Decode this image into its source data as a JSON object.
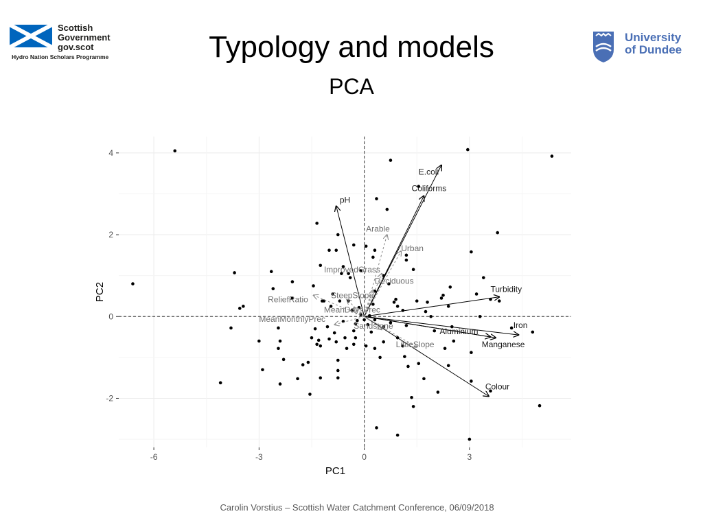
{
  "header": {
    "title": "Typology and models",
    "subtitle": "PCA",
    "logo_left": {
      "lines": [
        "Scottish",
        "Government",
        "gov.scot"
      ],
      "tagline": "Hydro Nation Scholars Programme"
    },
    "logo_right": {
      "lines": [
        "University",
        "of Dundee"
      ]
    }
  },
  "footer": {
    "text": "Carolin Vorstius – Scottish Water Catchment Conference, 06/09/2018"
  },
  "colors": {
    "gov_blue": "#0065bd",
    "dundee_blue": "#4a6fb5",
    "arrow_solid": "#000000",
    "arrow_dashed": "#8c8c8c"
  },
  "chart_data": {
    "type": "scatter",
    "subtype": "biplot",
    "xlabel": "PC1",
    "ylabel": "PC2",
    "xlim": [
      -7.0,
      5.9
    ],
    "ylim": [
      -3.2,
      4.4
    ],
    "xticks": [
      -6,
      -3,
      0,
      3
    ],
    "yticks": [
      -2,
      0,
      2,
      4
    ],
    "grid": true,
    "zero_lines": "dashed",
    "points": [
      [
        -5.4,
        4.05
      ],
      [
        -6.6,
        0.8
      ],
      [
        -4.1,
        -1.62
      ],
      [
        -3.7,
        1.07
      ],
      [
        -3.45,
        0.25
      ],
      [
        -3.55,
        0.2
      ],
      [
        -3.8,
        -0.28
      ],
      [
        -3.0,
        -0.6
      ],
      [
        -2.9,
        -1.3
      ],
      [
        -2.65,
        1.1
      ],
      [
        -2.6,
        0.68
      ],
      [
        -2.45,
        -0.28
      ],
      [
        -2.4,
        -0.6
      ],
      [
        -2.45,
        -0.78
      ],
      [
        -2.4,
        -1.65
      ],
      [
        -2.3,
        -1.05
      ],
      [
        -2.05,
        0.45
      ],
      [
        -2.05,
        0.85
      ],
      [
        -1.9,
        -1.52
      ],
      [
        -1.75,
        -1.18
      ],
      [
        -1.6,
        -1.12
      ],
      [
        -1.55,
        -1.9
      ],
      [
        -1.5,
        -0.52
      ],
      [
        -1.45,
        0.75
      ],
      [
        -1.4,
        -0.3
      ],
      [
        -1.35,
        -0.68
      ],
      [
        -1.3,
        -0.58
      ],
      [
        -1.25,
        -0.72
      ],
      [
        -1.25,
        -1.5
      ],
      [
        -1.2,
        0.38
      ],
      [
        -1.15,
        0.38
      ],
      [
        -1.05,
        -0.25
      ],
      [
        -1.0,
        -0.55
      ],
      [
        -0.95,
        0.25
      ],
      [
        -0.9,
        0.55
      ],
      [
        -0.85,
        -0.4
      ],
      [
        -0.8,
        -0.62
      ],
      [
        -0.75,
        -1.07
      ],
      [
        -0.75,
        -1.32
      ],
      [
        -0.75,
        -1.5
      ],
      [
        -0.7,
        0.38
      ],
      [
        -0.65,
        1.05
      ],
      [
        -0.6,
        -0.12
      ],
      [
        -0.55,
        -0.52
      ],
      [
        -0.5,
        -0.78
      ],
      [
        -0.45,
        1.05
      ],
      [
        -0.4,
        0.95
      ],
      [
        -0.35,
        0.15
      ],
      [
        -0.3,
        -0.35
      ],
      [
        -0.25,
        -0.18
      ],
      [
        -0.2,
        -0.1
      ],
      [
        -0.1,
        0.05
      ],
      [
        -1.0,
        1.62
      ],
      [
        -1.25,
        1.25
      ],
      [
        -1.35,
        2.28
      ],
      [
        -0.8,
        1.62
      ],
      [
        -0.75,
        2.0
      ],
      [
        -0.6,
        1.22
      ],
      [
        -0.3,
        1.75
      ],
      [
        0.05,
        1.72
      ],
      [
        0.25,
        1.45
      ],
      [
        0.3,
        1.62
      ],
      [
        0.35,
        2.88
      ],
      [
        0.65,
        2.62
      ],
      [
        0.75,
        3.82
      ],
      [
        0.55,
        1.0
      ],
      [
        0.7,
        0.8
      ],
      [
        0.85,
        0.35
      ],
      [
        0.9,
        0.42
      ],
      [
        0.95,
        0.25
      ],
      [
        1.1,
        0.15
      ],
      [
        1.2,
        1.5
      ],
      [
        1.4,
        1.15
      ],
      [
        1.5,
        0.38
      ],
      [
        1.55,
        3.18
      ],
      [
        1.75,
        0.12
      ],
      [
        1.8,
        0.35
      ],
      [
        1.9,
        0.0
      ],
      [
        2.0,
        -0.35
      ],
      [
        2.2,
        0.45
      ],
      [
        2.25,
        0.52
      ],
      [
        2.4,
        0.25
      ],
      [
        2.45,
        0.72
      ],
      [
        2.5,
        -0.25
      ],
      [
        2.55,
        -0.6
      ],
      [
        2.3,
        -0.78
      ],
      [
        2.4,
        -1.2
      ],
      [
        2.1,
        -1.85
      ],
      [
        1.55,
        -1.15
      ],
      [
        1.7,
        -1.52
      ],
      [
        1.4,
        -2.2
      ],
      [
        1.35,
        -1.98
      ],
      [
        1.25,
        -1.22
      ],
      [
        1.15,
        -0.98
      ],
      [
        1.1,
        -0.72
      ],
      [
        1.2,
        -0.22
      ],
      [
        0.95,
        -0.52
      ],
      [
        0.75,
        -0.15
      ],
      [
        0.55,
        -0.62
      ],
      [
        0.45,
        -1.0
      ],
      [
        0.3,
        -0.78
      ],
      [
        0.2,
        -0.38
      ],
      [
        0.1,
        -0.2
      ],
      [
        0.05,
        -0.72
      ],
      [
        0.35,
        -2.72
      ],
      [
        0.95,
        -2.9
      ],
      [
        2.95,
        4.08
      ],
      [
        3.05,
        1.58
      ],
      [
        3.2,
        0.55
      ],
      [
        3.3,
        0.0
      ],
      [
        3.4,
        0.95
      ],
      [
        3.8,
        2.05
      ],
      [
        3.85,
        0.38
      ],
      [
        3.05,
        -1.58
      ],
      [
        3.05,
        -0.88
      ],
      [
        3.0,
        -3.0
      ],
      [
        3.6,
        -1.82
      ],
      [
        4.2,
        -0.28
      ],
      [
        4.8,
        -0.38
      ],
      [
        5.35,
        3.92
      ],
      [
        5.0,
        -2.18
      ],
      [
        3.6,
        0.42
      ],
      [
        0.3,
        0.62
      ],
      [
        0.25,
        0.3
      ],
      [
        0.15,
        0.02
      ],
      [
        -0.15,
        0.22
      ],
      [
        -0.45,
        0.38
      ],
      [
        -0.3,
        -0.68
      ],
      [
        -0.25,
        -0.52
      ],
      [
        0.0,
        -0.08
      ],
      [
        0.3,
        -0.08
      ],
      [
        0.55,
        -0.25
      ],
      [
        -0.1,
        1.12
      ],
      [
        1.2,
        1.38
      ]
    ],
    "vectors": [
      {
        "name": "E.coli",
        "x": 2.2,
        "y": 3.7,
        "style": "solid"
      },
      {
        "name": "Coliforms",
        "x": 1.7,
        "y": 2.95,
        "style": "solid"
      },
      {
        "name": "pH",
        "x": -0.8,
        "y": 2.7,
        "style": "solid"
      },
      {
        "name": "Turbidity",
        "x": 3.85,
        "y": 0.48,
        "style": "solid"
      },
      {
        "name": "Iron",
        "x": 4.4,
        "y": -0.45,
        "style": "solid"
      },
      {
        "name": "Aluminium",
        "x": 3.6,
        "y": -0.5,
        "style": "solid"
      },
      {
        "name": "Manganese",
        "x": 3.75,
        "y": -0.52,
        "style": "solid"
      },
      {
        "name": "Colour",
        "x": 3.55,
        "y": -1.95,
        "style": "solid"
      },
      {
        "name": "Arable",
        "x": 0.65,
        "y": 2.0,
        "style": "dashed"
      },
      {
        "name": "Urban",
        "x": 1.05,
        "y": 1.6,
        "style": "dashed"
      },
      {
        "name": "ImprovedGrass",
        "x": 0.5,
        "y": 1.05,
        "style": "dashed"
      },
      {
        "name": "Deciduous",
        "x": 0.25,
        "y": 0.65,
        "style": "dashed"
      },
      {
        "name": "SteepSlope",
        "x": -0.5,
        "y": 0.42,
        "style": "dashed"
      },
      {
        "name": "ReliefRatio",
        "x": -1.45,
        "y": 0.52,
        "style": "dashed"
      },
      {
        "name": "MeanDaysPrec",
        "x": -0.3,
        "y": 0.22,
        "style": "dashed"
      },
      {
        "name": "MeanMonthlyPrec",
        "x": -0.85,
        "y": -0.2,
        "style": "dashed"
      },
      {
        "name": "Sandstone",
        "x": 0.5,
        "y": -0.32,
        "style": "dashed"
      },
      {
        "name": "LittleSlope",
        "x": 1.5,
        "y": -0.75,
        "style": "dashed"
      }
    ],
    "labels": [
      {
        "text": "E.coli",
        "x": 1.55,
        "y": 3.47,
        "style": "solid"
      },
      {
        "text": "Coliforms",
        "x": 1.35,
        "y": 3.07,
        "style": "solid"
      },
      {
        "text": "pH",
        "x": -0.7,
        "y": 2.78,
        "style": "solid"
      },
      {
        "text": "Turbidity",
        "x": 3.6,
        "y": 0.6,
        "style": "solid"
      },
      {
        "text": "Iron",
        "x": 4.25,
        "y": -0.28,
        "style": "solid"
      },
      {
        "text": "Aluminium",
        "x": 2.15,
        "y": -0.43,
        "style": "solid"
      },
      {
        "text": "Manganese",
        "x": 3.35,
        "y": -0.75,
        "style": "solid"
      },
      {
        "text": "Colour",
        "x": 3.45,
        "y": -1.78,
        "style": "solid"
      },
      {
        "text": "Arable",
        "x": 0.05,
        "y": 2.08,
        "style": "dashed"
      },
      {
        "text": "Urban",
        "x": 1.05,
        "y": 1.6,
        "style": "dashed"
      },
      {
        "text": "ImprovedGrass",
        "x": -1.15,
        "y": 1.08,
        "style": "dashed"
      },
      {
        "text": "Deciduous",
        "x": 0.3,
        "y": 0.8,
        "style": "dashed"
      },
      {
        "text": "SteepSlope",
        "x": -0.95,
        "y": 0.45,
        "style": "dashed"
      },
      {
        "text": "ReliefRatio",
        "x": -2.75,
        "y": 0.35,
        "style": "dashed"
      },
      {
        "text": "MeanDaysPrec",
        "x": -1.15,
        "y": 0.1,
        "style": "dashed"
      },
      {
        "text": "MeanMonthlyPrec",
        "x": -3.0,
        "y": -0.13,
        "style": "dashed"
      },
      {
        "text": "Sandstone",
        "x": -0.3,
        "y": -0.3,
        "style": "dashed"
      },
      {
        "text": "LittleSlope",
        "x": 0.9,
        "y": -0.75,
        "style": "dashed"
      }
    ]
  }
}
